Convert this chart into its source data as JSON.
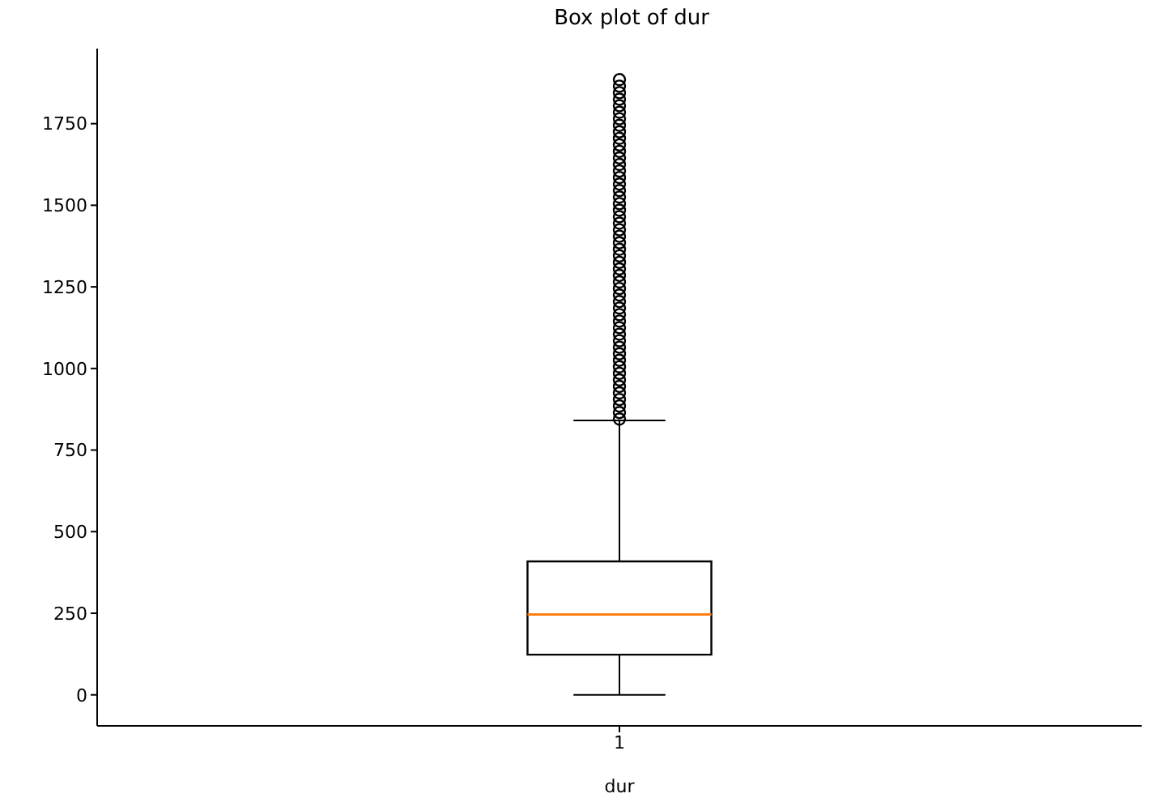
{
  "chart_data": {
    "type": "box",
    "title": "Box plot of dur",
    "xlabel": "dur",
    "categories": [
      "1"
    ],
    "color": "#000000",
    "boxes": [
      {
        "low": 0,
        "q1": 123,
        "median": 246,
        "q3": 409,
        "high": 841,
        "outliers": [
          845,
          865,
          885,
          905,
          925,
          945,
          965,
          985,
          1005,
          1025,
          1045,
          1065,
          1085,
          1105,
          1125,
          1145,
          1165,
          1185,
          1205,
          1225,
          1245,
          1265,
          1285,
          1305,
          1325,
          1345,
          1365,
          1385,
          1405,
          1425,
          1445,
          1465,
          1485,
          1505,
          1525,
          1545,
          1565,
          1585,
          1605,
          1625,
          1645,
          1665,
          1685,
          1705,
          1725,
          1745,
          1765,
          1785,
          1805,
          1825,
          1845,
          1865,
          1885
        ]
      }
    ],
    "ylim": [
      -95,
      1980
    ],
    "yticks": [
      0,
      250,
      500,
      750,
      1000,
      1250,
      1500,
      1750
    ],
    "grid": false,
    "marker": "circle"
  }
}
